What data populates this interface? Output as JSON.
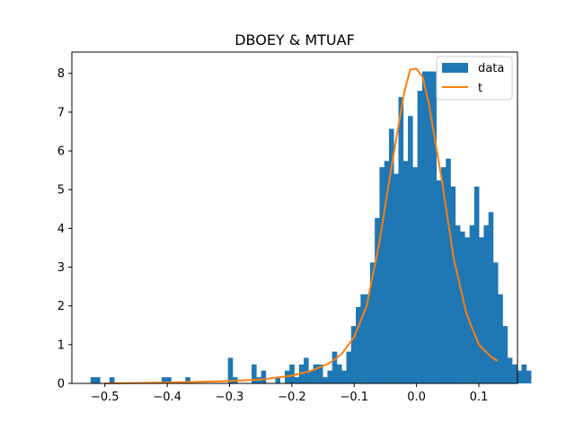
{
  "chart_data": {
    "type": "bar",
    "title": "DBOEY & MTUAF",
    "xlabel": "",
    "ylabel": "",
    "xlim": [
      -0.553,
      0.162
    ],
    "ylim": [
      0,
      8.55
    ],
    "xticks": [
      -0.5,
      -0.4,
      -0.3,
      -0.2,
      -0.1,
      0.0,
      0.1
    ],
    "xtick_labels": [
      "−0.5",
      "−0.4",
      "−0.3",
      "−0.2",
      "−0.1",
      "0.0",
      "0.1"
    ],
    "yticks": [
      0,
      1,
      2,
      3,
      4,
      5,
      6,
      7,
      8
    ],
    "ytick_labels": [
      "0",
      "1",
      "2",
      "3",
      "4",
      "5",
      "6",
      "7",
      "8"
    ],
    "grid": false,
    "legend_position": "top-right",
    "bin_start": -0.523,
    "bin_width": 0.0076,
    "series": [
      {
        "name": "data",
        "kind": "histogram",
        "color": "#1f77b4",
        "values": [
          0.16,
          0.16,
          0,
          0,
          0.16,
          0,
          0,
          0,
          0,
          0,
          0,
          0,
          0,
          0,
          0,
          0.16,
          0.16,
          0,
          0,
          0,
          0.16,
          0,
          0,
          0,
          0,
          0,
          0,
          0,
          0,
          0.66,
          0.16,
          0,
          0,
          0,
          0.49,
          0.16,
          0.33,
          0,
          0,
          0.16,
          0,
          0.33,
          0.49,
          0.16,
          0.49,
          0.66,
          0.33,
          0.49,
          0.49,
          0.16,
          0.33,
          0.82,
          0.49,
          0.33,
          0.82,
          1.48,
          1.97,
          2.3,
          2.3,
          3.12,
          4.27,
          5.58,
          5.74,
          6.57,
          5.41,
          7.39,
          5.74,
          6.9,
          5.58,
          7.55,
          8.05,
          8.05,
          8.05,
          5.24,
          5.58,
          5.8,
          5.08,
          4.08,
          3.92,
          3.77,
          4.08,
          5.08,
          3.77,
          4.08,
          4.42,
          3.12,
          2.3,
          1.48,
          0.66,
          0.49,
          0.33,
          0.49,
          0.33
        ]
      },
      {
        "name": "t",
        "kind": "line",
        "color": "#ff7f0e",
        "x": [
          -0.5,
          -0.4,
          -0.3,
          -0.25,
          -0.2,
          -0.17,
          -0.14,
          -0.12,
          -0.1,
          -0.08,
          -0.06,
          -0.04,
          -0.02,
          -0.01,
          0.0,
          0.01,
          0.02,
          0.04,
          0.06,
          0.08,
          0.1,
          0.12,
          0.13
        ],
        "y": [
          0.0,
          0.02,
          0.06,
          0.1,
          0.2,
          0.32,
          0.52,
          0.76,
          1.2,
          2.0,
          3.6,
          5.6,
          7.5,
          8.1,
          8.12,
          7.9,
          7.2,
          5.3,
          3.2,
          1.8,
          1.0,
          0.68,
          0.58
        ]
      }
    ]
  }
}
